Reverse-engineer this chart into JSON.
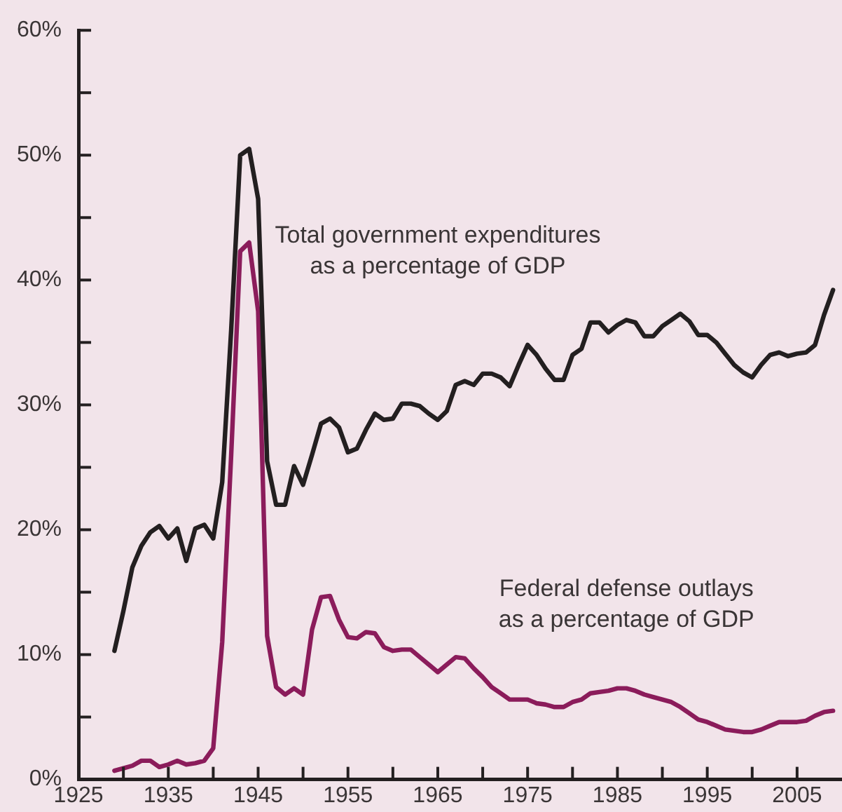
{
  "chart_data": {
    "type": "line",
    "x": [
      1929,
      1930,
      1931,
      1932,
      1933,
      1934,
      1935,
      1936,
      1937,
      1938,
      1939,
      1940,
      1941,
      1942,
      1943,
      1944,
      1945,
      1946,
      1947,
      1948,
      1949,
      1950,
      1951,
      1952,
      1953,
      1954,
      1955,
      1956,
      1957,
      1958,
      1959,
      1960,
      1961,
      1962,
      1963,
      1964,
      1965,
      1966,
      1967,
      1968,
      1969,
      1970,
      1971,
      1972,
      1973,
      1974,
      1975,
      1976,
      1977,
      1978,
      1979,
      1980,
      1981,
      1982,
      1983,
      1984,
      1985,
      1986,
      1987,
      1988,
      1989,
      1990,
      1991,
      1992,
      1993,
      1994,
      1995,
      1996,
      1997,
      1998,
      1999,
      2000,
      2001,
      2002,
      2003,
      2004,
      2005,
      2006,
      2007,
      2008,
      2009
    ],
    "series": [
      {
        "name": "Total government expenditures\nas a percentage of GDP",
        "color": "#231f20",
        "values": [
          10.3,
          13.5,
          17,
          18.7,
          19.8,
          20.3,
          19.3,
          20.1,
          17.5,
          20.1,
          20.4,
          19.3,
          23.8,
          36,
          50,
          50.5,
          46.5,
          25.5,
          22,
          22,
          25.1,
          23.6,
          26,
          28.5,
          28.9,
          28.2,
          26.2,
          26.5,
          28,
          29.3,
          28.8,
          28.9,
          30.1,
          30.1,
          29.9,
          29.3,
          28.8,
          29.5,
          31.6,
          31.9,
          31.6,
          32.5,
          32.5,
          32.2,
          31.5,
          33.2,
          34.8,
          34,
          32.9,
          32,
          32,
          34,
          34.5,
          36.6,
          36.6,
          35.8,
          36.4,
          36.8,
          36.6,
          35.5,
          35.5,
          36.3,
          36.8,
          37.3,
          36.7,
          35.6,
          35.6,
          35,
          34.1,
          33.2,
          32.6,
          32.2,
          33.2,
          34,
          34.2,
          33.9,
          34.1,
          34.2,
          34.8,
          37.2,
          39.2
        ]
      },
      {
        "name": "Federal defense outlays\nas a percentage of GDP",
        "color": "#8b1c5b",
        "values": [
          0.7,
          0.9,
          1.1,
          1.5,
          1.5,
          1,
          1.2,
          1.5,
          1.2,
          1.3,
          1.5,
          2.5,
          11,
          26,
          42.3,
          43,
          37.5,
          11.5,
          7.4,
          6.8,
          7.3,
          6.8,
          12,
          14.6,
          14.7,
          12.8,
          11.4,
          11.3,
          11.8,
          11.7,
          10.6,
          10.3,
          10.4,
          10.4,
          9.8,
          9.2,
          8.6,
          9.2,
          9.8,
          9.7,
          8.9,
          8.2,
          7.4,
          6.9,
          6.4,
          6.4,
          6.4,
          6.1,
          6,
          5.8,
          5.8,
          6.2,
          6.4,
          6.9,
          7,
          7.1,
          7.3,
          7.3,
          7.1,
          6.8,
          6.6,
          6.4,
          6.2,
          5.8,
          5.3,
          4.8,
          4.6,
          4.3,
          4,
          3.9,
          3.8,
          3.8,
          4,
          4.3,
          4.6,
          4.6,
          4.6,
          4.7,
          5.1,
          5.4,
          5.5
        ]
      }
    ],
    "xlim": [
      1925,
      2010
    ],
    "xticks": [
      1925,
      {
        "value": 1930,
        "label": null
      },
      1935,
      {
        "value": 1940,
        "label": null
      },
      1945,
      {
        "value": 1950,
        "label": null
      },
      1955,
      {
        "value": 1960,
        "label": null
      },
      1965,
      {
        "value": 1970,
        "label": null
      },
      1975,
      {
        "value": 1980,
        "label": null
      },
      1985,
      {
        "value": 1990,
        "label": null
      },
      1995,
      {
        "value": 2000,
        "label": null
      },
      2005
    ],
    "ylim": [
      0,
      60
    ],
    "yticks": [
      {
        "value": 0,
        "label": "0%"
      },
      {
        "value": 5,
        "label": null
      },
      {
        "value": 10,
        "label": "10%"
      },
      {
        "value": 15,
        "label": null
      },
      {
        "value": 20,
        "label": "20%"
      },
      {
        "value": 25,
        "label": null
      },
      {
        "value": 30,
        "label": "30%"
      },
      {
        "value": 35,
        "label": null
      },
      {
        "value": 40,
        "label": "40%"
      },
      {
        "value": 45,
        "label": null
      },
      {
        "value": 50,
        "label": "50%"
      },
      {
        "value": 55,
        "label": null
      },
      {
        "value": 60,
        "label": "60%"
      }
    ],
    "grid": false,
    "legend": false,
    "marker": "none",
    "line_style": "solid"
  }
}
